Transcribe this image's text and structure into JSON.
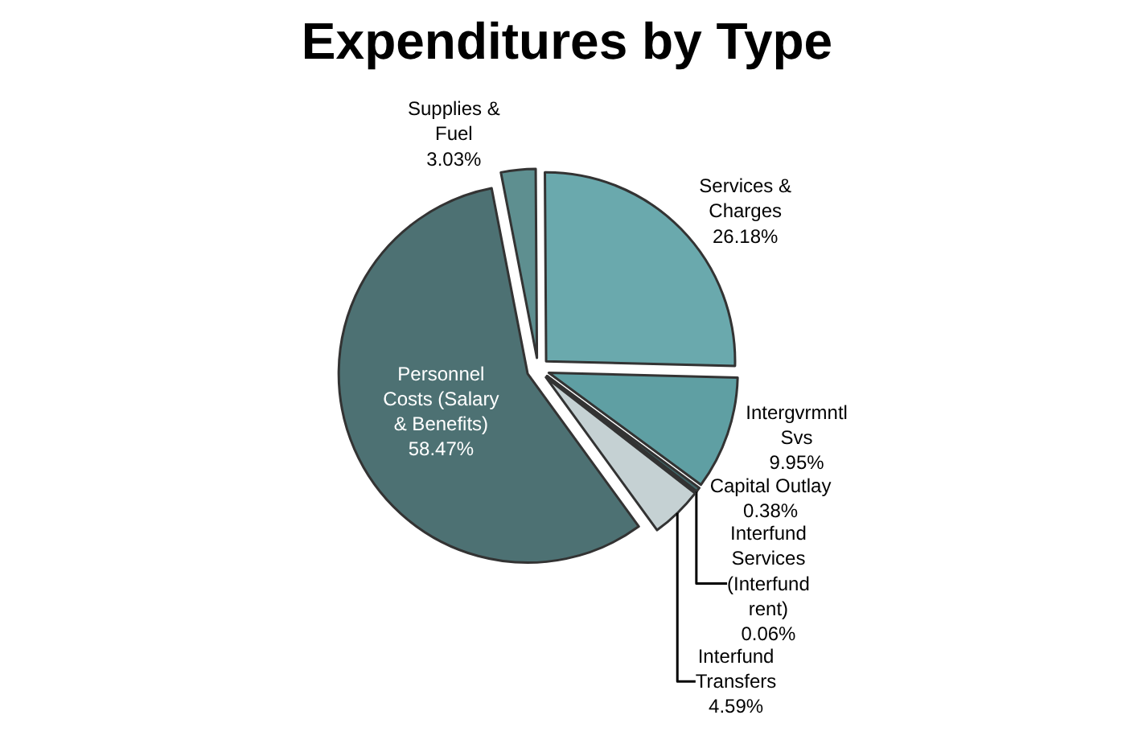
{
  "chart_data": {
    "type": "pie",
    "title": "Expenditures by Type",
    "categories": [
      "Supplies & Fuel",
      "Services & Charges",
      "Intergvrmntl Svs",
      "Capital Outlay",
      "Interfund Services (Interfund rent)",
      "Interfund Transfers",
      "Personnel Costs (Salary & Benefits)"
    ],
    "values": [
      3.03,
      26.18,
      9.95,
      0.38,
      0.06,
      4.59,
      58.47
    ],
    "colors": [
      "#5e8f90",
      "#6aa9ad",
      "#5f9fa3",
      "#3f6466",
      "#9fb0b2",
      "#c5d1d3",
      "#4d7173"
    ],
    "value_labels": [
      "3.03%",
      "26.18%",
      "9.95%",
      "0.38%",
      "0.06%",
      "4.59%",
      "58.47%"
    ],
    "legend": false
  }
}
